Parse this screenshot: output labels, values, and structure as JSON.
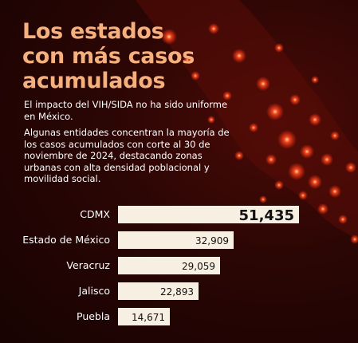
{
  "title_lines": [
    "Los estados",
    "con más casos",
    "acumulados"
  ],
  "paragraph_1": "El impacto del VIH/SIDA no ha sido uniforme en México.",
  "paragraph_2": "Algunas entidades concentran la mayoría de los casos acumulados con corte al 30 de noviembre de 2024, destacando zonas urbanas con alta densidad poblacional y movilidad social.",
  "colors": {
    "title": "#f5b07e",
    "bar": "#f6efe2",
    "background": "#1e0403",
    "dots": "#ff3a1a"
  },
  "chart_data": {
    "type": "bar",
    "orientation": "horizontal",
    "categories": [
      "CDMX",
      "Estado de México",
      "Veracruz",
      "Jalisco",
      "Puebla"
    ],
    "values": [
      51435,
      32909,
      29059,
      22893,
      14671
    ],
    "value_labels": [
      "51,435",
      "32,909",
      "29,059",
      "22,893",
      "14,671"
    ],
    "title": "",
    "xlabel": "",
    "ylabel": ""
  }
}
